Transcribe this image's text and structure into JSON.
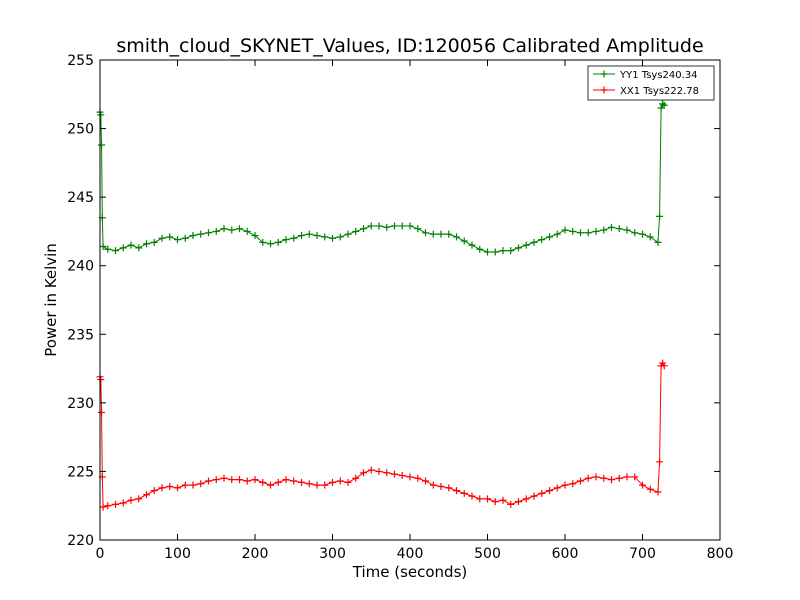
{
  "chart_data": {
    "type": "line",
    "title": "smith_cloud_SKYNET_Values, ID:120056 Calibrated Amplitude",
    "xlabel": "Time (seconds)",
    "ylabel": "Power in Kelvin",
    "xlim": [
      0,
      800
    ],
    "ylim": [
      220,
      255
    ],
    "xticks": [
      "0",
      "100",
      "200",
      "300",
      "400",
      "500",
      "600",
      "700",
      "800"
    ],
    "yticks": [
      "220",
      "225",
      "230",
      "235",
      "240",
      "245",
      "250",
      "255"
    ],
    "grid": false,
    "legend_position": "top-right",
    "marker": "plus",
    "series": [
      {
        "name": "YY1 Tsys240.34",
        "color": "#008000",
        "x": [
          0,
          1,
          2,
          3,
          4,
          10,
          20,
          30,
          40,
          50,
          60,
          70,
          80,
          90,
          100,
          110,
          120,
          130,
          140,
          150,
          160,
          170,
          180,
          190,
          200,
          210,
          220,
          230,
          240,
          250,
          260,
          270,
          280,
          290,
          300,
          310,
          320,
          330,
          340,
          350,
          360,
          370,
          380,
          390,
          400,
          410,
          420,
          430,
          440,
          450,
          460,
          470,
          480,
          490,
          500,
          510,
          520,
          530,
          540,
          550,
          560,
          570,
          580,
          590,
          600,
          610,
          620,
          630,
          640,
          650,
          660,
          670,
          680,
          690,
          700,
          710,
          720,
          722,
          724,
          726,
          728
        ],
        "y": [
          251.2,
          251.0,
          248.8,
          243.5,
          241.4,
          241.2,
          241.1,
          241.3,
          241.5,
          241.3,
          241.6,
          241.7,
          242.0,
          242.1,
          241.9,
          242.0,
          242.2,
          242.3,
          242.4,
          242.5,
          242.7,
          242.6,
          242.7,
          242.5,
          242.2,
          241.7,
          241.6,
          241.7,
          241.9,
          242.0,
          242.2,
          242.3,
          242.2,
          242.1,
          242.0,
          242.1,
          242.3,
          242.5,
          242.7,
          242.9,
          242.9,
          242.8,
          242.9,
          242.9,
          242.9,
          242.7,
          242.4,
          242.3,
          242.3,
          242.3,
          242.1,
          241.8,
          241.5,
          241.2,
          241.0,
          241.0,
          241.1,
          241.1,
          241.3,
          241.5,
          241.7,
          241.9,
          242.1,
          242.3,
          242.6,
          242.5,
          242.4,
          242.4,
          242.5,
          242.6,
          242.8,
          242.7,
          242.6,
          242.4,
          242.3,
          242.1,
          241.7,
          243.6,
          251.5,
          251.8,
          251.7
        ]
      },
      {
        "name": "XX1 Tsys222.78",
        "color": "#ff0000",
        "x": [
          0,
          1,
          2,
          3,
          4,
          10,
          20,
          30,
          40,
          50,
          60,
          70,
          80,
          90,
          100,
          110,
          120,
          130,
          140,
          150,
          160,
          170,
          180,
          190,
          200,
          210,
          220,
          230,
          240,
          250,
          260,
          270,
          280,
          290,
          300,
          310,
          320,
          330,
          340,
          350,
          360,
          370,
          380,
          390,
          400,
          410,
          420,
          430,
          440,
          450,
          460,
          470,
          480,
          490,
          500,
          510,
          520,
          530,
          540,
          550,
          560,
          570,
          580,
          590,
          600,
          610,
          620,
          630,
          640,
          650,
          660,
          670,
          680,
          690,
          700,
          710,
          720,
          722,
          724,
          726,
          728
        ],
        "y": [
          231.9,
          231.7,
          229.3,
          224.6,
          222.4,
          222.5,
          222.6,
          222.7,
          222.9,
          223.0,
          223.3,
          223.6,
          223.8,
          223.9,
          223.8,
          224.0,
          224.0,
          224.1,
          224.3,
          224.4,
          224.5,
          224.4,
          224.4,
          224.3,
          224.4,
          224.2,
          224.0,
          224.2,
          224.4,
          224.3,
          224.2,
          224.1,
          224.0,
          224.0,
          224.2,
          224.3,
          224.2,
          224.5,
          224.9,
          225.1,
          225.0,
          224.9,
          224.8,
          224.7,
          224.6,
          224.5,
          224.3,
          224.0,
          223.9,
          223.8,
          223.6,
          223.4,
          223.2,
          223.0,
          223.0,
          222.8,
          222.9,
          222.6,
          222.8,
          223.0,
          223.2,
          223.4,
          223.6,
          223.8,
          224.0,
          224.1,
          224.3,
          224.5,
          224.6,
          224.5,
          224.4,
          224.5,
          224.6,
          224.6,
          224.0,
          223.7,
          223.5,
          225.7,
          232.7,
          232.9,
          232.7
        ]
      }
    ]
  }
}
